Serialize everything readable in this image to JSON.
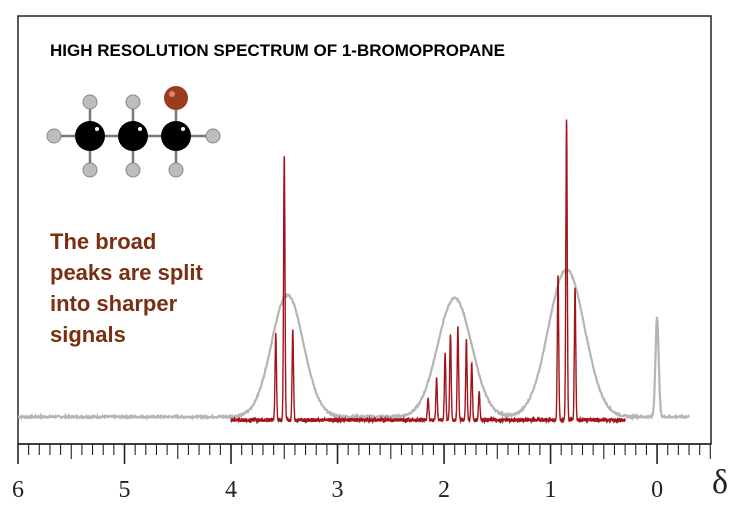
{
  "chart_data": {
    "type": "line",
    "title": "HIGH RESOLUTION SPECTRUM OF 1-BROMOPROPANE",
    "annotation_lines": [
      "The broad",
      "peaks are split",
      "into sharper",
      "signals"
    ],
    "xlabel": "δ",
    "x_axis": {
      "min": 6,
      "max": -0.45,
      "reversed": true,
      "major_ticks": [
        6,
        5,
        4,
        3,
        2,
        1,
        0
      ],
      "minor_step": 0.1
    },
    "y_axis": {
      "min": 0,
      "max": 1.03
    },
    "molecule_icon": "1-bromopropane-ball-and-stick-icon",
    "colors": {
      "low_resolution": "#b5b5b5",
      "high_resolution": "#a3131a",
      "annotation": "#7a2e12",
      "bromine": "#9b3b1f",
      "carbon": "#000000",
      "hydrogen": "#bdbdbd"
    },
    "series": [
      {
        "name": "",
        "style": "low-resolution",
        "baseline": 0.01,
        "x_range": [
          6,
          -0.3
        ],
        "peaks": [
          {
            "center": 3.47,
            "height": 0.38,
            "width": 0.15
          },
          {
            "center": 1.9,
            "height": 0.37,
            "width": 0.16
          },
          {
            "center": 0.85,
            "height": 0.46,
            "width": 0.17
          },
          {
            "center": 0.0,
            "height": 0.31,
            "width": 0.015
          }
        ]
      },
      {
        "name": "",
        "style": "high-resolution",
        "baseline": 0.0,
        "x_range": [
          4.0,
          0.3
        ],
        "peaks": [
          {
            "center": 3.58,
            "height": 0.27
          },
          {
            "center": 3.5,
            "height": 0.83
          },
          {
            "center": 3.42,
            "height": 0.28
          },
          {
            "center": 2.15,
            "height": 0.07
          },
          {
            "center": 2.07,
            "height": 0.13
          },
          {
            "center": 1.99,
            "height": 0.21
          },
          {
            "center": 1.94,
            "height": 0.27
          },
          {
            "center": 1.87,
            "height": 0.29
          },
          {
            "center": 1.79,
            "height": 0.25
          },
          {
            "center": 1.74,
            "height": 0.18
          },
          {
            "center": 1.67,
            "height": 0.09
          },
          {
            "center": 0.93,
            "height": 0.45
          },
          {
            "center": 0.85,
            "height": 0.94
          },
          {
            "center": 0.77,
            "height": 0.41
          }
        ]
      }
    ]
  }
}
